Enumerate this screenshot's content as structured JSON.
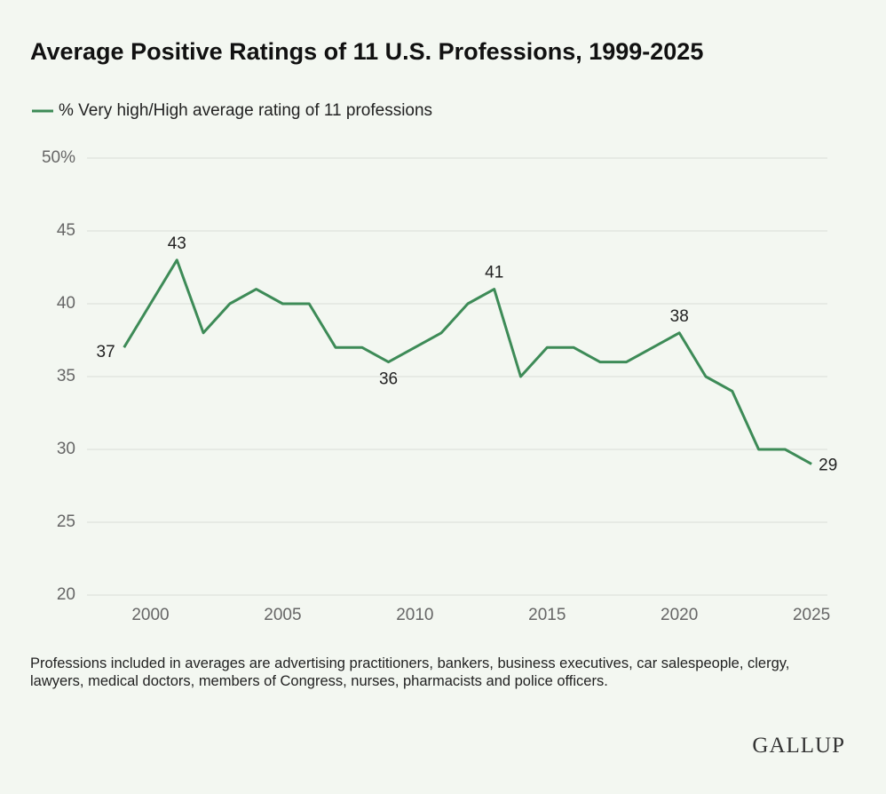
{
  "chart_data": {
    "type": "line",
    "title": "Average Positive Ratings of 11 U.S. Professions, 1999-2025",
    "x": [
      1999,
      2000,
      2001,
      2002,
      2003,
      2004,
      2005,
      2006,
      2007,
      2008,
      2009,
      2010,
      2011,
      2012,
      2013,
      2014,
      2015,
      2016,
      2017,
      2018,
      2019,
      2020,
      2021,
      2022,
      2023,
      2024,
      2025
    ],
    "series": [
      {
        "name": "% Very high/High average rating of 11 professions",
        "color": "#3d8b57",
        "values": [
          37,
          40,
          43,
          38,
          40,
          41,
          40,
          40,
          37,
          37,
          36,
          37,
          38,
          40,
          41,
          35,
          37,
          37,
          36,
          36,
          37,
          38,
          35,
          34,
          30,
          30,
          29
        ]
      }
    ],
    "xlim": [
      1997.6,
      2025.6
    ],
    "xticks": [
      2000,
      2005,
      2010,
      2015,
      2020,
      2025
    ],
    "ylim": [
      20,
      50
    ],
    "yticks": [
      20,
      25,
      30,
      35,
      40,
      45,
      {
        "value": 50,
        "label": "50%"
      }
    ],
    "grid": true,
    "footnote": "Professions included in averages are advertising practitioners, bankers, business executives, car salespeople, clergy, lawyers, medical doctors, members of Congress, nurses, pharmacists and police officers.",
    "source": "GALLUP"
  }
}
